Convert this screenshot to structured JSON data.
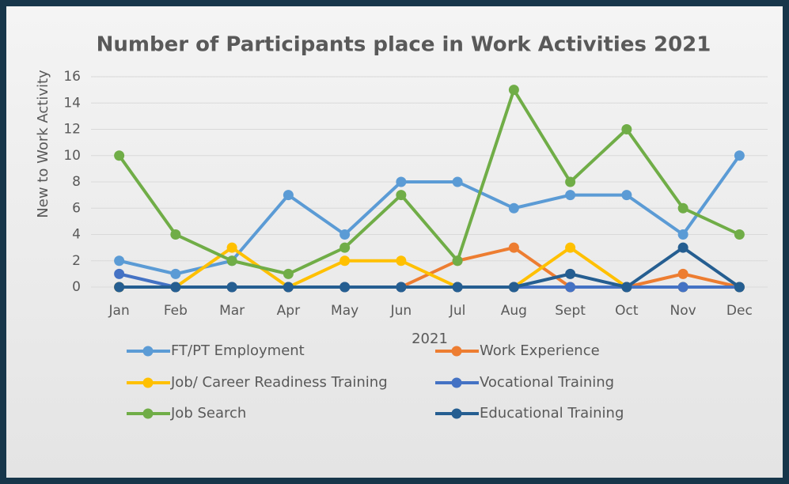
{
  "chart_data": {
    "type": "line",
    "title": "Number of Participants place in Work Activities 2021",
    "x_label": "2021",
    "y_label": "New to Work Activity",
    "categories": [
      "Jan",
      "Feb",
      "Mar",
      "Apr",
      "May",
      "Jun",
      "Jul",
      "Aug",
      "Sept",
      "Oct",
      "Nov",
      "Dec"
    ],
    "series": [
      {
        "name": "FT/PT Employment",
        "color": "#5b9bd5",
        "values": [
          2,
          1,
          2,
          7,
          4,
          8,
          8,
          6,
          7,
          7,
          4,
          10
        ]
      },
      {
        "name": "Work Experience",
        "color": "#ed7d31",
        "values": [
          0,
          0,
          0,
          0,
          0,
          0,
          2,
          3,
          0,
          0,
          1,
          0
        ]
      },
      {
        "name": "Job/ Career Readiness Training",
        "color": "#ffc000",
        "values": [
          0,
          0,
          3,
          0,
          2,
          2,
          0,
          0,
          3,
          0,
          0,
          0
        ]
      },
      {
        "name": "Vocational Training",
        "color": "#4472c4",
        "values": [
          1,
          0,
          0,
          0,
          0,
          0,
          0,
          0,
          0,
          0,
          0,
          0
        ]
      },
      {
        "name": "Job Search",
        "color": "#70ad47",
        "values": [
          10,
          4,
          2,
          1,
          3,
          7,
          2,
          15,
          8,
          12,
          6,
          4
        ]
      },
      {
        "name": "Educational Training",
        "color": "#255e91",
        "values": [
          0,
          0,
          0,
          0,
          0,
          0,
          0,
          0,
          1,
          0,
          3,
          0
        ]
      }
    ],
    "ylim": [
      0,
      16
    ],
    "yticks": [
      0,
      2,
      4,
      6,
      8,
      10,
      12,
      14,
      16
    ],
    "grid": true,
    "legend": "bottom"
  }
}
